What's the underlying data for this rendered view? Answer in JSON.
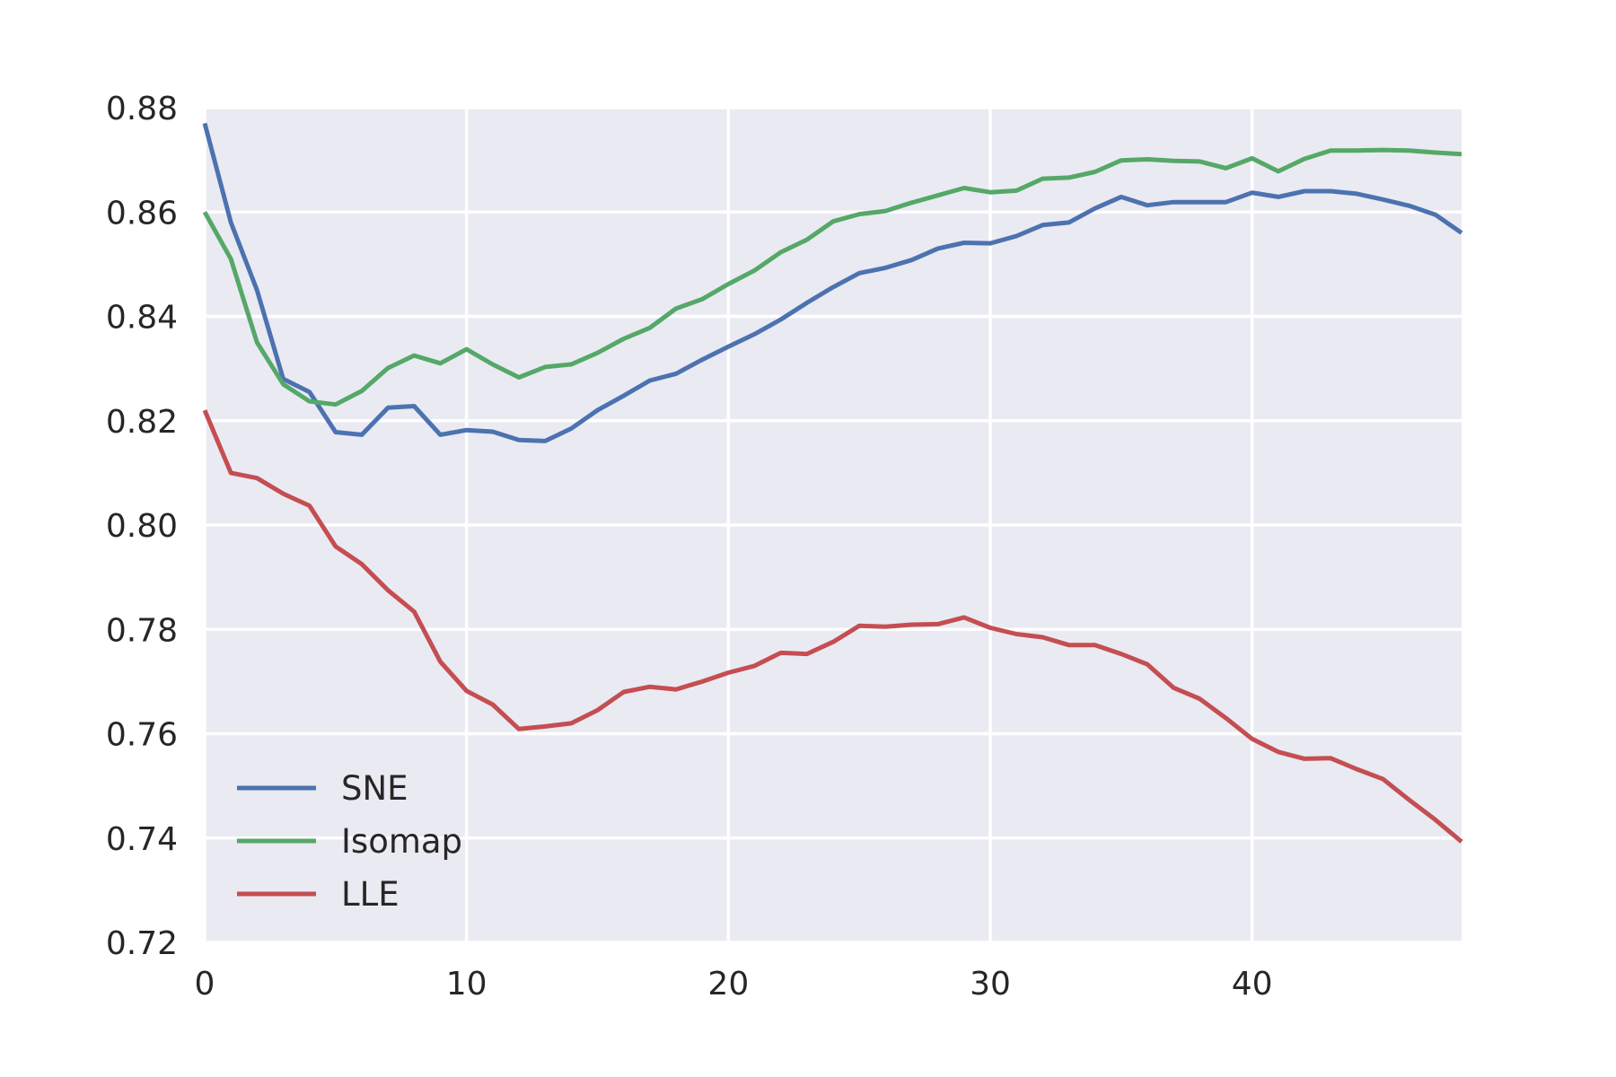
{
  "chart_data": {
    "type": "line",
    "title": "",
    "xlabel": "",
    "ylabel": "",
    "xlim": [
      0,
      48
    ],
    "ylim": [
      0.72,
      0.88
    ],
    "xticks": [
      0,
      10,
      20,
      30,
      40
    ],
    "xtick_labels": [
      "0",
      "10",
      "20",
      "30",
      "40"
    ],
    "yticks": [
      0.72,
      0.74,
      0.76,
      0.78,
      0.8,
      0.82,
      0.84,
      0.86,
      0.88
    ],
    "ytick_labels": [
      "0.72",
      "0.74",
      "0.76",
      "0.78",
      "0.80",
      "0.82",
      "0.84",
      "0.86",
      "0.88"
    ],
    "grid": true,
    "legend_position": "lower-left",
    "background_color": "#eaeaf2",
    "grid_color": "#ffffff",
    "x": [
      0,
      1,
      2,
      3,
      4,
      5,
      6,
      7,
      8,
      9,
      10,
      11,
      12,
      13,
      14,
      15,
      16,
      17,
      18,
      19,
      20,
      21,
      22,
      23,
      24,
      25,
      26,
      27,
      28,
      29,
      30,
      31,
      32,
      33,
      34,
      35,
      36,
      37,
      38,
      39,
      40,
      41,
      42,
      43,
      44,
      45,
      46,
      47,
      48
    ],
    "series": [
      {
        "name": "SNE",
        "color": "#4c72b0",
        "values": [
          0.877,
          0.858,
          0.845,
          0.828,
          0.8255,
          0.8178,
          0.8173,
          0.8225,
          0.8228,
          0.8173,
          0.8182,
          0.8179,
          0.8163,
          0.8161,
          0.8185,
          0.822,
          0.8248,
          0.8277,
          0.829,
          0.8317,
          0.8342,
          0.8366,
          0.8394,
          0.8426,
          0.8456,
          0.8483,
          0.8493,
          0.8508,
          0.853,
          0.8541,
          0.854,
          0.8554,
          0.8575,
          0.858,
          0.8607,
          0.8629,
          0.8613,
          0.8619,
          0.8619,
          0.8619,
          0.8637,
          0.8629,
          0.864,
          0.864,
          0.8635,
          0.8624,
          0.8612,
          0.8595,
          0.856
        ]
      },
      {
        "name": "Isomap",
        "color": "#55a868",
        "values": [
          0.86,
          0.851,
          0.835,
          0.827,
          0.8237,
          0.8231,
          0.8257,
          0.8301,
          0.8325,
          0.831,
          0.8337,
          0.8308,
          0.8283,
          0.8303,
          0.8308,
          0.833,
          0.8357,
          0.8378,
          0.8415,
          0.8433,
          0.8462,
          0.8488,
          0.8523,
          0.8547,
          0.8582,
          0.8596,
          0.8602,
          0.8618,
          0.8632,
          0.8646,
          0.8638,
          0.8641,
          0.8664,
          0.8666,
          0.8677,
          0.8699,
          0.8701,
          0.8698,
          0.8697,
          0.8684,
          0.8703,
          0.8678,
          0.8702,
          0.8718,
          0.8718,
          0.8719,
          0.8718,
          0.8714,
          0.8711
        ]
      },
      {
        "name": "LLE",
        "color": "#c44e52",
        "values": [
          0.822,
          0.81,
          0.809,
          0.806,
          0.8037,
          0.7959,
          0.7925,
          0.7875,
          0.7834,
          0.7738,
          0.7682,
          0.7656,
          0.7609,
          0.7614,
          0.762,
          0.7645,
          0.768,
          0.769,
          0.7685,
          0.77,
          0.7717,
          0.773,
          0.7755,
          0.7753,
          0.7776,
          0.7807,
          0.7805,
          0.7809,
          0.781,
          0.7823,
          0.7803,
          0.7791,
          0.7785,
          0.777,
          0.777,
          0.7753,
          0.7733,
          0.7688,
          0.7667,
          0.763,
          0.759,
          0.7565,
          0.7552,
          0.7553,
          0.7532,
          0.7513,
          0.7473,
          0.7435,
          0.7393
        ]
      }
    ]
  }
}
